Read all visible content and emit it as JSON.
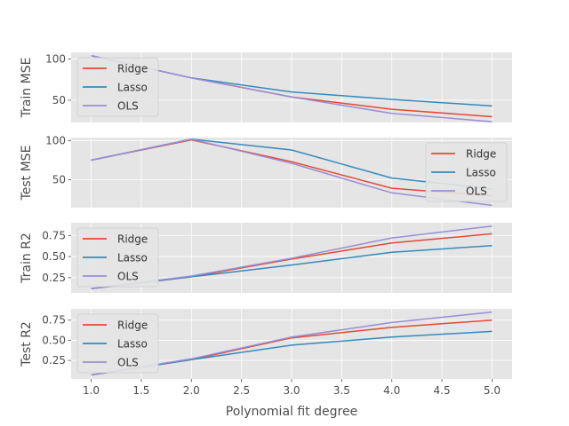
{
  "chart_data": {
    "type": "line",
    "x": [
      1.0,
      2.0,
      3.0,
      4.0,
      5.0
    ],
    "xlabel": "Polynomial fit degree",
    "xlim": [
      0.8,
      5.2
    ],
    "xticks": [
      "1.0",
      "1.5",
      "2.0",
      "2.5",
      "3.0",
      "3.5",
      "4.0",
      "4.5",
      "5.0"
    ],
    "colors": {
      "Ridge": "#e24a33",
      "Lasso": "#348abd",
      "OLS": "#988ed5"
    },
    "panels": [
      {
        "ylabel": "Train MSE",
        "ylim": [
          23,
          108
        ],
        "yticks": [
          "50",
          "100"
        ],
        "legend": "top-left",
        "series": [
          {
            "name": "Ridge",
            "values": [
              104,
              77,
              54,
              39,
              30
            ]
          },
          {
            "name": "Lasso",
            "values": [
              104,
              77,
              60,
              51,
              43
            ]
          },
          {
            "name": "OLS",
            "values": [
              104,
              77,
              54,
              34,
              24
            ]
          }
        ]
      },
      {
        "ylabel": "Test MSE",
        "ylim": [
          14,
          104
        ],
        "yticks": [
          "50",
          "100"
        ],
        "legend": "right",
        "series": [
          {
            "name": "Ridge",
            "values": [
              75,
              101,
              73,
              39,
              29
            ]
          },
          {
            "name": "Lasso",
            "values": [
              75,
              102,
              88,
              52,
              38
            ]
          },
          {
            "name": "OLS",
            "values": [
              75,
              102,
              71,
              33,
              17
            ]
          }
        ]
      },
      {
        "ylabel": "Train R2",
        "ylim": [
          0.07,
          0.9
        ],
        "yticks": [
          "0.25",
          "0.50",
          "0.75"
        ],
        "legend": "top-left",
        "series": [
          {
            "name": "Ridge",
            "values": [
              0.12,
              0.26,
              0.47,
              0.66,
              0.77
            ]
          },
          {
            "name": "Lasso",
            "values": [
              0.12,
              0.26,
              0.4,
              0.55,
              0.63
            ]
          },
          {
            "name": "OLS",
            "values": [
              0.12,
              0.27,
              0.48,
              0.72,
              0.86
            ]
          }
        ]
      },
      {
        "ylabel": "Test R2",
        "ylim": [
          0.02,
          0.89
        ],
        "yticks": [
          "0.25",
          "0.50",
          "0.75"
        ],
        "legend": "top-left",
        "series": [
          {
            "name": "Ridge",
            "values": [
              0.07,
              0.26,
              0.53,
              0.66,
              0.75
            ]
          },
          {
            "name": "Lasso",
            "values": [
              0.07,
              0.26,
              0.44,
              0.54,
              0.61
            ]
          },
          {
            "name": "OLS",
            "values": [
              0.07,
              0.27,
              0.54,
              0.72,
              0.85
            ]
          }
        ]
      }
    ]
  }
}
